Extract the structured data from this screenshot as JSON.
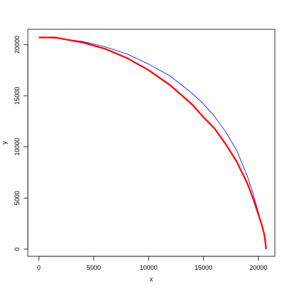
{
  "chart_data": {
    "type": "line",
    "title": "",
    "xlabel": "x",
    "ylabel": "y",
    "xlim": [
      -1000,
      21500
    ],
    "ylim": [
      -700,
      21500
    ],
    "x_ticks": [
      0,
      5000,
      10000,
      15000,
      20000
    ],
    "y_ticks": [
      0,
      5000,
      10000,
      15000,
      20000
    ],
    "grid": false,
    "legend": "none",
    "series": [
      {
        "color": "#0000ff",
        "width": 0.8,
        "x": [
          0,
          2000,
          4000,
          6000,
          8000,
          10000,
          12000,
          14000,
          15000,
          16000,
          17000,
          18000,
          19000,
          19500,
          20000,
          20300,
          20500,
          20600,
          20700
        ],
        "y": [
          20700,
          20600,
          20300,
          19800,
          19100,
          18100,
          16900,
          15200,
          14200,
          13000,
          11500,
          9700,
          7100,
          5500,
          3600,
          2500,
          1700,
          1000,
          0
        ]
      },
      {
        "color": "#ff0000",
        "width": 2.2,
        "x": [
          0,
          1500,
          2000,
          4000,
          6000,
          8000,
          10000,
          12000,
          14000,
          15000,
          16000,
          17000,
          18000,
          19000,
          19500,
          20000,
          20300,
          20500,
          20600,
          20700
        ],
        "y": [
          20700,
          20700,
          20600,
          20200,
          19600,
          18700,
          17500,
          16000,
          14100,
          12900,
          11800,
          10300,
          8600,
          6400,
          5000,
          3400,
          2400,
          1600,
          1000,
          0
        ]
      }
    ]
  }
}
